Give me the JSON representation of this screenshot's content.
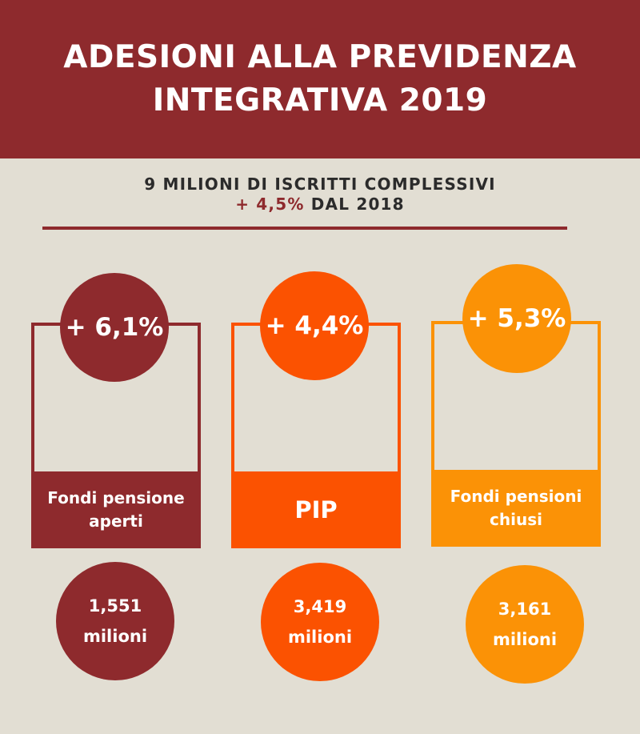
{
  "title": {
    "line1": "ADESIONI ALLA PREVIDENZA",
    "line2": "INTEGRATIVA 2019"
  },
  "subtitle": {
    "line1": "9 MILIONI DI ISCRITTI COMPLESSIVI",
    "growth": "+ 4,5%",
    "since": " DAL 2018"
  },
  "colors": {
    "dark_red": "#8e2a2d",
    "orange": "#fb5201",
    "light_orange": "#fb9206",
    "background": "#e2ded3"
  },
  "categories": [
    {
      "growth": "+ 6,1%",
      "label_line1": "Fondi pensione",
      "label_line2": "aperti",
      "value_line1": "1,551",
      "value_line2": "milioni"
    },
    {
      "growth": "+ 4,4%",
      "label_line1": "PIP",
      "label_line2": "",
      "value_line1": "3,419",
      "value_line2": "milioni"
    },
    {
      "growth": "+ 5,3%",
      "label_line1": "Fondi pensioni",
      "label_line2": "chiusi",
      "value_line1": "3,161",
      "value_line2": "milioni"
    }
  ]
}
